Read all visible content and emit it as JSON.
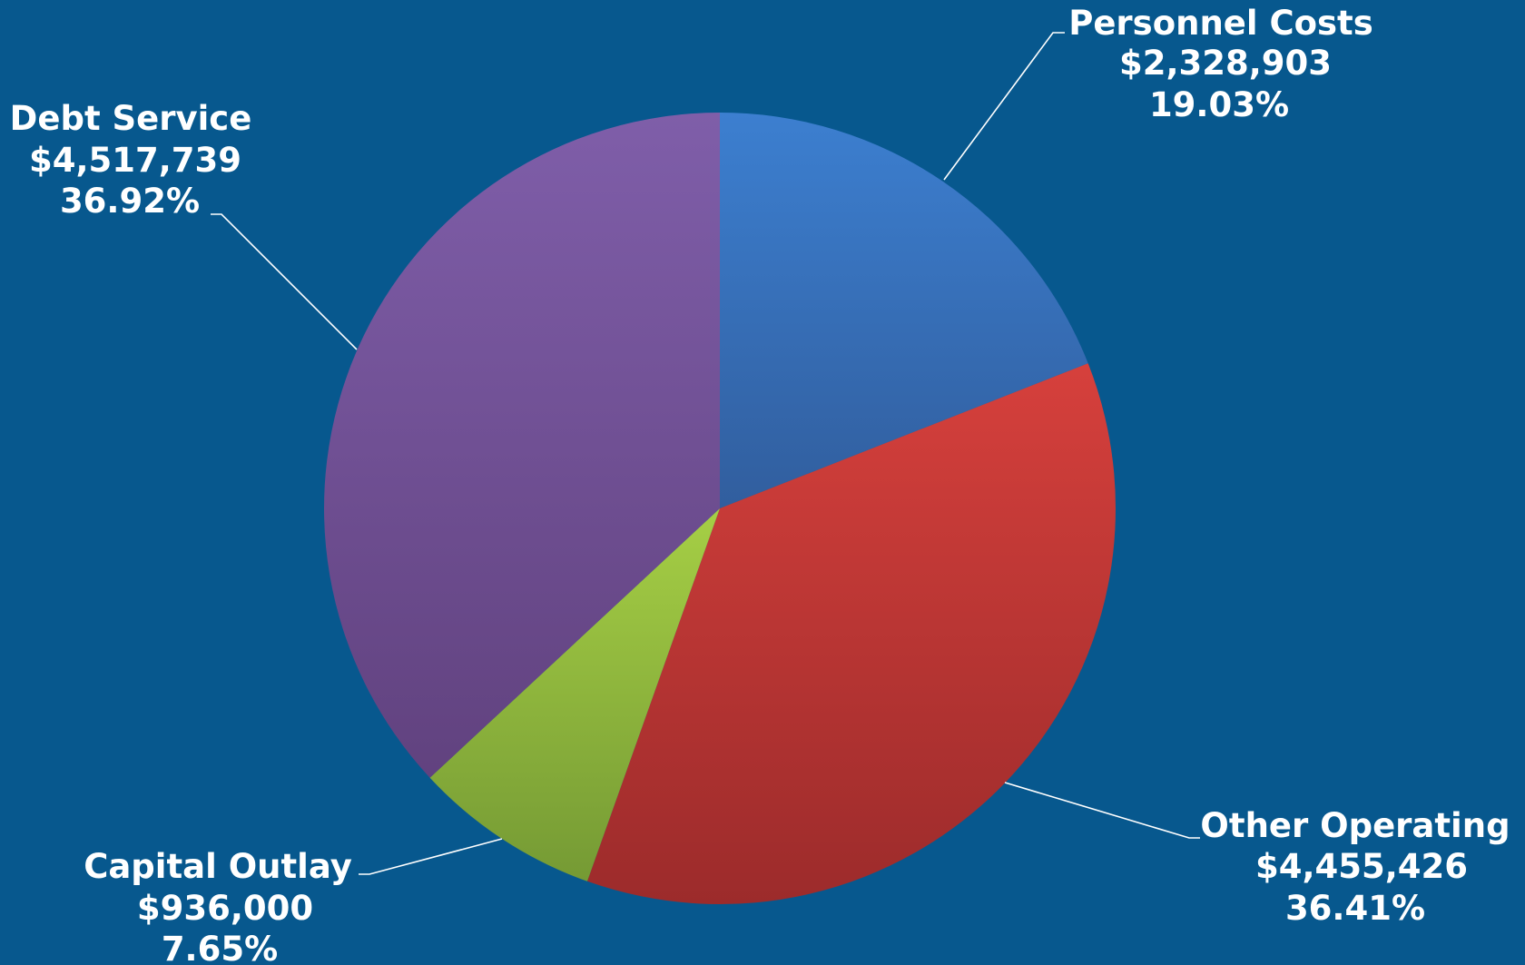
{
  "chart_data": {
    "type": "pie",
    "title": "",
    "slices": [
      {
        "label": "Personnel Costs",
        "value": 2328903,
        "value_text": "$2,328,903",
        "percent": 19.03,
        "percent_text": "19.03%",
        "color_top": "#3c7fd0",
        "color_bottom": "#315e9e"
      },
      {
        "label": "Other Operating",
        "value": 4455426,
        "value_text": "$4,455,426",
        "percent": 36.41,
        "percent_text": "36.41%",
        "color_top": "#d6403c",
        "color_bottom": "#9c2b2b"
      },
      {
        "label": "Capital Outlay",
        "value": 936000,
        "value_text": "$936,000",
        "percent": 7.65,
        "percent_text": "7.65%",
        "color_top": "#a6cf45",
        "color_bottom": "#759a34"
      },
      {
        "label": "Debt Service",
        "value": 4517739,
        "value_text": "$4,517,739",
        "percent": 36.92,
        "percent_text": "36.92%",
        "color_top": "#7f5ea9",
        "color_bottom": "#61427f"
      }
    ],
    "start_angle_deg": 0,
    "direction": "clockwise",
    "labels": "outside-with-leader-lines",
    "legend": "none",
    "background": "#07588e"
  }
}
